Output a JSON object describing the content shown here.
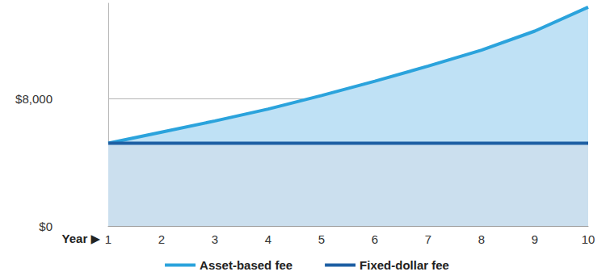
{
  "chart_data": {
    "type": "area",
    "xlabel": "Year ▶",
    "x": [
      1,
      2,
      3,
      4,
      5,
      6,
      7,
      8,
      9,
      10
    ],
    "series": [
      {
        "name": "Asset-based fee",
        "color": "#2ba3dc",
        "values": [
          5200,
          5900,
          6600,
          7350,
          8200,
          9100,
          10050,
          11050,
          12250,
          13750
        ]
      },
      {
        "name": "Fixed-dollar fee",
        "color": "#1d5fa3",
        "values": [
          5200,
          5200,
          5200,
          5200,
          5200,
          5200,
          5200,
          5200,
          5200,
          5200
        ]
      }
    ],
    "xlim": [
      1,
      10
    ],
    "xticks": [
      1,
      2,
      3,
      4,
      5,
      6,
      7,
      8,
      9,
      10
    ],
    "ylim": [
      0,
      14000
    ],
    "yticks": [
      {
        "value": 0,
        "label": "$0"
      },
      {
        "value": 8000,
        "label": "$8,000"
      }
    ],
    "grid": true,
    "legend": "bottom"
  }
}
